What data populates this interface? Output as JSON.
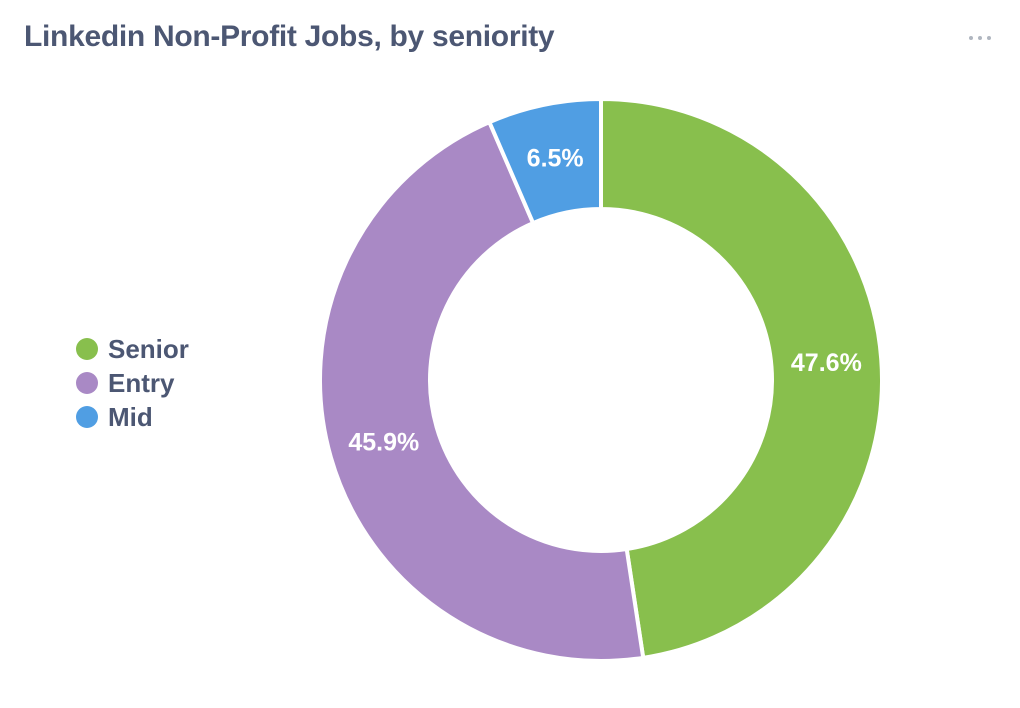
{
  "card": {
    "title": "Linkedin Non-Profit Jobs, by seniority",
    "more_icon": "more-horizontal-icon"
  },
  "chart_data": {
    "type": "pie",
    "style": "donut",
    "title": "Linkedin Non-Profit Jobs, by seniority",
    "legend_position": "left",
    "categories": [
      "Senior",
      "Entry",
      "Mid"
    ],
    "values": [
      47.6,
      45.9,
      6.5
    ],
    "labels": [
      "47.6%",
      "45.9%",
      "6.5%"
    ],
    "colors": [
      "#88bf4d",
      "#a989c5",
      "#509ee3"
    ]
  }
}
